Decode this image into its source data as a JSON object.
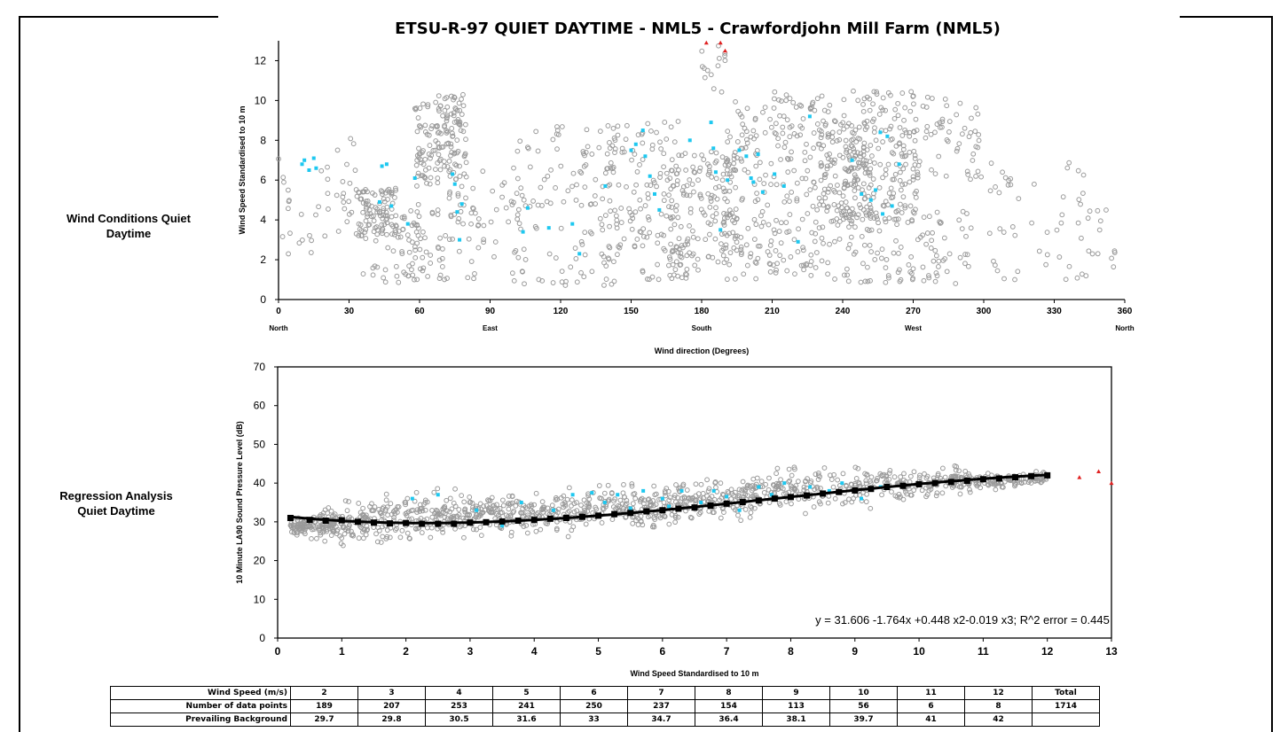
{
  "page": {
    "title": "ETSU-R-97 QUIET DAYTIME - NML5 - Crawfordjohn Mill Farm (NML5)",
    "label_top": [
      "Wind Conditions Quiet",
      "Daytime"
    ],
    "label_bottom": [
      "Regression Analysis",
      "Quiet Daytime"
    ]
  },
  "chart_data": [
    {
      "type": "scatter",
      "title": "",
      "xlabel": "Wind direction (Degrees)",
      "ylabel": "Wind Speed Standardised to 10 m",
      "xlim": [
        0,
        360
      ],
      "ylim": [
        0,
        13
      ],
      "xticks": [
        0,
        30,
        60,
        90,
        120,
        150,
        180,
        210,
        240,
        270,
        300,
        330,
        360
      ],
      "yticks": [
        0,
        2,
        4,
        6,
        8,
        10,
        12
      ],
      "compass": [
        {
          "x": 0,
          "label": "North"
        },
        {
          "x": 90,
          "label": "East"
        },
        {
          "x": 180,
          "label": "South"
        },
        {
          "x": 270,
          "label": "West"
        },
        {
          "x": 360,
          "label": "North"
        }
      ],
      "colors": {
        "all": "#9a9a9a",
        "highlight": "#1ec8f0",
        "excluded": "#e02020"
      },
      "clusters": [
        {
          "x": [
            0,
            6
          ],
          "y": [
            2,
            7.5
          ],
          "n": 10
        },
        {
          "x": [
            8,
            22
          ],
          "y": [
            1.2,
            7.2
          ],
          "n": 14
        },
        {
          "x": [
            24,
            34
          ],
          "y": [
            3,
            8.5
          ],
          "n": 20
        },
        {
          "x": [
            34,
            50
          ],
          "y": [
            3.2,
            5.6
          ],
          "n": 90
        },
        {
          "x": [
            36,
            60
          ],
          "y": [
            0.8,
            4.5
          ],
          "n": 55
        },
        {
          "x": [
            58,
            80
          ],
          "y": [
            6,
            10.3
          ],
          "n": 150
        },
        {
          "x": [
            58,
            85
          ],
          "y": [
            1,
            6
          ],
          "n": 70
        },
        {
          "x": [
            85,
            100
          ],
          "y": [
            0.3,
            7
          ],
          "n": 20
        },
        {
          "x": [
            100,
            145
          ],
          "y": [
            0.6,
            8.8
          ],
          "n": 130
        },
        {
          "x": [
            140,
            170
          ],
          "y": [
            1,
            9
          ],
          "n": 120
        },
        {
          "x": [
            165,
            195
          ],
          "y": [
            1,
            7.5
          ],
          "n": 170
        },
        {
          "x": [
            180,
            190
          ],
          "y": [
            10,
            12.8
          ],
          "n": 14
        },
        {
          "x": [
            190,
            235
          ],
          "y": [
            1,
            10.5
          ],
          "n": 250
        },
        {
          "x": [
            230,
            252
          ],
          "y": [
            3.5,
            9
          ],
          "n": 130
        },
        {
          "x": [
            240,
            272
          ],
          "y": [
            4,
            10.5
          ],
          "n": 180
        },
        {
          "x": [
            235,
            295
          ],
          "y": [
            0.8,
            4.5
          ],
          "n": 110
        },
        {
          "x": [
            270,
            300
          ],
          "y": [
            6,
            10.3
          ],
          "n": 60
        },
        {
          "x": [
            300,
            345
          ],
          "y": [
            1,
            7
          ],
          "n": 45
        },
        {
          "x": [
            340,
            356
          ],
          "y": [
            1.2,
            4.5
          ],
          "n": 15
        }
      ],
      "highlight_points": [
        [
          10,
          6.8
        ],
        [
          11,
          7
        ],
        [
          13,
          6.5
        ],
        [
          15,
          7.1
        ],
        [
          16,
          6.6
        ],
        [
          44,
          6.7
        ],
        [
          46,
          6.8
        ],
        [
          48,
          4.7
        ],
        [
          43,
          4.9
        ],
        [
          55,
          3.8
        ],
        [
          58,
          6.1
        ],
        [
          74,
          6.3
        ],
        [
          75,
          5.8
        ],
        [
          76,
          4.4
        ],
        [
          77,
          3
        ],
        [
          78,
          4.8
        ],
        [
          104,
          3.4
        ],
        [
          106,
          4.6
        ],
        [
          115,
          3.6
        ],
        [
          125,
          3.8
        ],
        [
          128,
          2.3
        ],
        [
          139,
          5.7
        ],
        [
          150,
          7.5
        ],
        [
          152,
          7.8
        ],
        [
          155,
          8.5
        ],
        [
          156,
          7.2
        ],
        [
          158,
          6.2
        ],
        [
          160,
          5.3
        ],
        [
          162,
          4.5
        ],
        [
          175,
          8
        ],
        [
          184,
          8.9
        ],
        [
          185,
          7.6
        ],
        [
          186,
          6.4
        ],
        [
          188,
          3.5
        ],
        [
          191,
          6
        ],
        [
          196,
          7.5
        ],
        [
          199,
          7.2
        ],
        [
          201,
          6.1
        ],
        [
          202,
          5.9
        ],
        [
          204,
          7.3
        ],
        [
          206,
          5.4
        ],
        [
          211,
          6.3
        ],
        [
          215,
          5.7
        ],
        [
          221,
          2.9
        ],
        [
          226,
          9.2
        ],
        [
          244,
          7
        ],
        [
          248,
          5.3
        ],
        [
          252,
          5
        ],
        [
          254,
          5.5
        ],
        [
          256,
          8.4
        ],
        [
          257,
          4.3
        ],
        [
          259,
          8.2
        ],
        [
          261,
          4.7
        ],
        [
          264,
          6.8
        ]
      ],
      "excluded_points": [
        [
          182,
          12.9
        ],
        [
          188,
          12.9
        ],
        [
          190,
          12.5
        ]
      ]
    },
    {
      "type": "scatter",
      "title": "",
      "xlabel": "Wind Speed Standardised to 10 m",
      "ylabel": "10 Minute LA90 Sound Pressure Level (dB)",
      "xlim": [
        0,
        13
      ],
      "ylim": [
        0,
        70
      ],
      "xticks": [
        0,
        1,
        2,
        3,
        4,
        5,
        6,
        7,
        8,
        9,
        10,
        11,
        12,
        13
      ],
      "yticks": [
        0,
        10,
        20,
        30,
        40,
        50,
        60,
        70
      ],
      "equation": "y = 31.606 -1.764x +0.448 x2-0.019 x3; R^2 error = 0.445",
      "fit_coefficients": [
        31.606,
        -1.764,
        0.448,
        -0.019
      ],
      "fit_points": [
        [
          0.2,
          31
        ],
        [
          0.5,
          30.5
        ],
        [
          0.75,
          30.3
        ],
        [
          1.0,
          30.4
        ],
        [
          1.25,
          30
        ],
        [
          1.5,
          29.8
        ],
        [
          1.75,
          29.6
        ],
        [
          2.0,
          29.7
        ],
        [
          2.25,
          29.5
        ],
        [
          2.5,
          29.5
        ],
        [
          2.75,
          29.5
        ],
        [
          3.0,
          29.8
        ],
        [
          3.25,
          29.9
        ],
        [
          3.5,
          30.1
        ],
        [
          3.75,
          30.3
        ],
        [
          4.0,
          30.5
        ],
        [
          4.25,
          30.8
        ],
        [
          4.5,
          31.0
        ],
        [
          4.75,
          31.3
        ],
        [
          5.0,
          31.6
        ],
        [
          5.25,
          32
        ],
        [
          5.5,
          32.3
        ],
        [
          5.75,
          32.7
        ],
        [
          6.0,
          33
        ],
        [
          6.25,
          33.4
        ],
        [
          6.5,
          33.7
        ],
        [
          6.75,
          34.2
        ],
        [
          7.0,
          34.7
        ],
        [
          7.25,
          35.1
        ],
        [
          7.5,
          35.5
        ],
        [
          7.75,
          36
        ],
        [
          8.0,
          36.4
        ],
        [
          8.25,
          36.8
        ],
        [
          8.5,
          37.3
        ],
        [
          8.75,
          37.7
        ],
        [
          9.0,
          38.1
        ],
        [
          9.25,
          38.5
        ],
        [
          9.5,
          39
        ],
        [
          9.75,
          39.3
        ],
        [
          10.0,
          39.7
        ],
        [
          10.25,
          40
        ],
        [
          10.5,
          40.3
        ],
        [
          10.75,
          40.6
        ],
        [
          11.0,
          41
        ],
        [
          11.25,
          41.2
        ],
        [
          11.5,
          41.5
        ],
        [
          11.75,
          41.8
        ],
        [
          12.0,
          42
        ]
      ],
      "spread": [
        [
          0.2,
          26,
          31
        ],
        [
          1,
          23,
          36
        ],
        [
          2,
          22,
          40
        ],
        [
          3,
          24,
          39
        ],
        [
          4,
          25,
          40
        ],
        [
          5,
          26,
          41
        ],
        [
          6,
          27,
          42
        ],
        [
          7,
          29,
          43
        ],
        [
          8,
          31,
          46
        ],
        [
          9,
          32,
          46
        ],
        [
          10,
          34,
          45
        ],
        [
          10.5,
          36,
          45
        ],
        [
          11,
          37,
          44
        ],
        [
          11.6,
          38,
          44
        ],
        [
          12,
          39,
          44
        ]
      ],
      "highlight_points": [
        [
          2.1,
          36
        ],
        [
          2.5,
          37
        ],
        [
          3.1,
          33
        ],
        [
          3.5,
          29
        ],
        [
          3.8,
          35
        ],
        [
          4.3,
          33
        ],
        [
          4.6,
          37
        ],
        [
          4.9,
          37.5
        ],
        [
          5.1,
          35
        ],
        [
          5.3,
          37
        ],
        [
          5.5,
          33.5
        ],
        [
          5.7,
          38
        ],
        [
          6.0,
          36
        ],
        [
          6.1,
          34
        ],
        [
          6.3,
          38
        ],
        [
          6.6,
          35
        ],
        [
          6.8,
          38
        ],
        [
          7.0,
          36.5
        ],
        [
          7.2,
          33
        ],
        [
          7.5,
          39
        ],
        [
          7.7,
          37
        ],
        [
          7.9,
          40
        ],
        [
          8.3,
          39
        ],
        [
          8.6,
          38
        ],
        [
          8.8,
          40
        ],
        [
          9.1,
          36
        ],
        [
          9.4,
          39
        ]
      ],
      "excluded_points": [
        [
          12.5,
          41.5
        ],
        [
          12.8,
          43
        ],
        [
          13,
          40
        ]
      ]
    }
  ],
  "table": {
    "rows": [
      {
        "label": "Wind Speed (m/s)",
        "cells": [
          "2",
          "3",
          "4",
          "5",
          "6",
          "7",
          "8",
          "9",
          "10",
          "11",
          "12",
          "Total"
        ]
      },
      {
        "label": "Number of data points",
        "cells": [
          "189",
          "207",
          "253",
          "241",
          "250",
          "237",
          "154",
          "113",
          "56",
          "6",
          "8",
          "1714"
        ]
      },
      {
        "label": "Prevailing Background",
        "cells": [
          "29.7",
          "29.8",
          "30.5",
          "31.6",
          "33",
          "34.7",
          "36.4",
          "38.1",
          "39.7",
          "41",
          "42",
          ""
        ]
      }
    ]
  }
}
